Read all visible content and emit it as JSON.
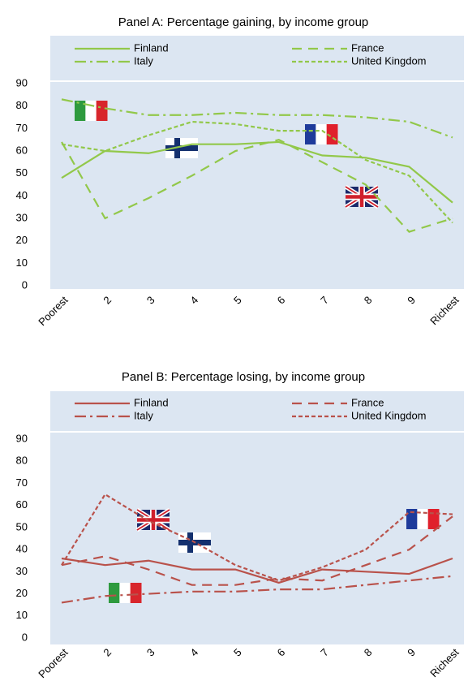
{
  "chart_data": [
    {
      "type": "line",
      "title": "Panel A: Percentage gaining, by income group",
      "categories": [
        "Poorest",
        "2",
        "3",
        "4",
        "5",
        "6",
        "7",
        "8",
        "9",
        "Richest"
      ],
      "ylim": [
        0,
        90
      ],
      "yticks": [
        0,
        10,
        20,
        30,
        40,
        50,
        60,
        70,
        80,
        90
      ],
      "legend": "top",
      "series": [
        {
          "name": "Finland",
          "color": "#92c84a",
          "dash": "solid",
          "values": [
            48,
            60,
            59,
            63,
            63,
            64,
            58,
            57,
            53,
            37
          ]
        },
        {
          "name": "France",
          "color": "#92c84a",
          "dash": "long",
          "values": [
            64,
            30,
            39,
            49,
            60,
            65,
            55,
            45,
            24,
            30
          ]
        },
        {
          "name": "Italy",
          "color": "#92c84a",
          "dash": "dashdot",
          "values": [
            83,
            79,
            76,
            76,
            77,
            76,
            76,
            75,
            73,
            66
          ]
        },
        {
          "name": "United Kingdom",
          "color": "#92c84a",
          "dash": "short",
          "values": [
            63,
            60,
            67,
            73,
            72,
            69,
            69,
            56,
            49,
            28
          ]
        }
      ]
    },
    {
      "type": "line",
      "title": "Panel B: Percentage losing, by income group",
      "categories": [
        "Poorest",
        "2",
        "3",
        "4",
        "5",
        "6",
        "7",
        "8",
        "9",
        "Richest"
      ],
      "ylim": [
        0,
        90
      ],
      "yticks": [
        0,
        10,
        20,
        30,
        40,
        50,
        60,
        70,
        80,
        90
      ],
      "legend": "top",
      "series": [
        {
          "name": "Finland",
          "color": "#b9524b",
          "dash": "solid",
          "values": [
            36,
            33,
            35,
            31,
            31,
            25,
            31,
            30,
            29,
            36
          ]
        },
        {
          "name": "France",
          "color": "#b9524b",
          "dash": "long",
          "values": [
            33,
            37,
            31,
            24,
            24,
            27,
            26,
            33,
            40,
            55
          ]
        },
        {
          "name": "Italy",
          "color": "#b9524b",
          "dash": "dashdot",
          "values": [
            16,
            19,
            20,
            21,
            21,
            22,
            22,
            24,
            26,
            28
          ]
        },
        {
          "name": "United Kingdom",
          "color": "#b9524b",
          "dash": "short",
          "values": [
            33,
            65,
            53,
            44,
            33,
            26,
            32,
            40,
            57,
            56
          ]
        }
      ]
    }
  ]
}
